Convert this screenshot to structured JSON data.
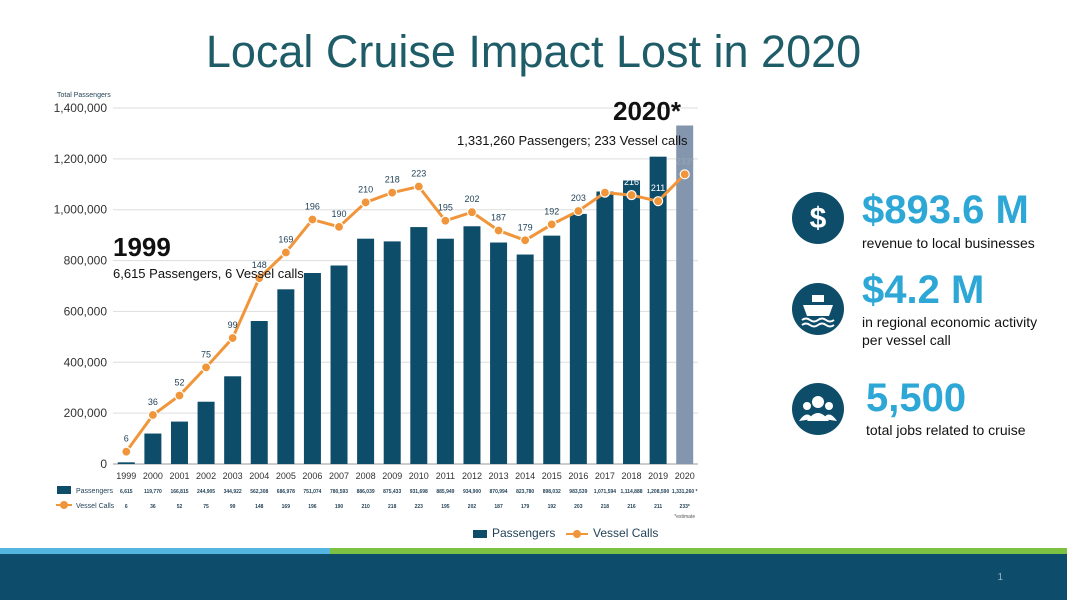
{
  "slide": {
    "title": "Local Cruise Impact Lost in 2020",
    "page_number": "1"
  },
  "annotations": {
    "y1999_year": "1999",
    "y1999_text": "6,615 Passengers, 6 Vessel calls",
    "y2020_year": "2020*",
    "y2020_text": "1,331,260 Passengers; 233 Vessel calls"
  },
  "stats": [
    {
      "value": "$893.6 M",
      "desc_lines": [
        "revenue to local businesses"
      ],
      "icon": "dollar-icon"
    },
    {
      "value": "$4.2 M",
      "desc_lines": [
        "in regional economic  activity",
        "per vessel call"
      ],
      "icon": "cruise-ship-icon"
    },
    {
      "value": "5,500",
      "desc_lines": [
        "total jobs related to cruise"
      ],
      "icon": "people-icon"
    }
  ],
  "colors": {
    "bar": "#0e4d6a",
    "bar_estimate": "#8496ad",
    "line": "#f0953a",
    "title": "#1e5c68",
    "stat_value": "#2ca7d6"
  },
  "chart_data": {
    "type": "bar",
    "y_axis_title": "Total Passengers",
    "categories": [
      "1999",
      "2000",
      "2001",
      "2002",
      "2003",
      "2004",
      "2005",
      "2006",
      "2007",
      "2008",
      "2009",
      "2010",
      "2011",
      "2012",
      "2013",
      "2014",
      "2015",
      "2016",
      "2017",
      "2018",
      "2019",
      "2020"
    ],
    "y_ticks": [
      "0",
      "200,000",
      "400,000",
      "600,000",
      "800,000",
      "1,000,000",
      "1,200,000",
      "1,400,000"
    ],
    "ylim": [
      0,
      1400000
    ],
    "grid": true,
    "series": [
      {
        "name": "Passengers",
        "type": "bar",
        "values": [
          6615,
          119770,
          166815,
          244905,
          344922,
          562308,
          686978,
          751074,
          780593,
          886039,
          875433,
          931698,
          885949,
          934900,
          870994,
          823780,
          898032,
          983539,
          1071594,
          1114888,
          1208590,
          1331260
        ],
        "table_labels": [
          "6,615",
          "119,770",
          "166,815",
          "244,905",
          "344,922",
          "562,308",
          "686,978",
          "751,074",
          "780,593",
          "886,039",
          "875,433",
          "931,698",
          "885,949",
          "934,900",
          "870,994",
          "823,780",
          "898,032",
          "983,539",
          "1,071,594",
          "1,114,888",
          "1,208,590",
          "1,331,260"
        ],
        "estimate_last": true
      },
      {
        "name": "Vessel Calls",
        "type": "line",
        "values": [
          6,
          36,
          52,
          75,
          99,
          148,
          169,
          196,
          190,
          210,
          218,
          223,
          195,
          202,
          187,
          179,
          192,
          203,
          218,
          216,
          211,
          233
        ],
        "point_labels": [
          "6",
          "36",
          "52",
          "75",
          "99",
          "148",
          "169",
          "196",
          "190",
          "210",
          "218",
          "223",
          "195",
          "202",
          "187",
          "179",
          "192",
          "203",
          "218",
          "216",
          "211",
          "233*"
        ],
        "table_labels": [
          "6",
          "36",
          "52",
          "75",
          "99",
          "148",
          "169",
          "196",
          "190",
          "210",
          "218",
          "223",
          "195",
          "202",
          "187",
          "179",
          "192",
          "203",
          "218",
          "216",
          "211",
          "233*"
        ]
      }
    ],
    "table_passenger_suffix": "*",
    "table_footnote": "*estimate",
    "legend": [
      "Passengers",
      "Vessel Calls"
    ],
    "legend_position": "bottom"
  }
}
